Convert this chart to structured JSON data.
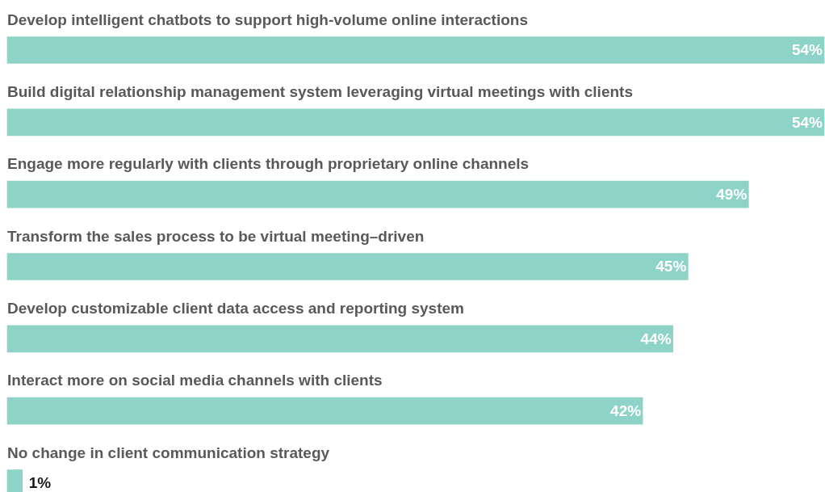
{
  "chart_data": {
    "type": "bar",
    "orientation": "horizontal",
    "categories": [
      "Develop intelligent chatbots to support high-volume online interactions",
      "Build digital relationship management system leveraging virtual meetings with clients",
      "Engage more regularly with clients through proprietary online channels",
      "Transform the sales process to be virtual meeting–driven",
      "Develop customizable client data access and reporting system",
      "Interact more on social media channels with clients",
      "No change in client communication strategy"
    ],
    "values": [
      54,
      54,
      49,
      45,
      44,
      42,
      1
    ],
    "value_labels": [
      "54%",
      "54%",
      "49%",
      "45%",
      "44%",
      "42%",
      "1%"
    ],
    "color": "#8dd3c7"
  }
}
